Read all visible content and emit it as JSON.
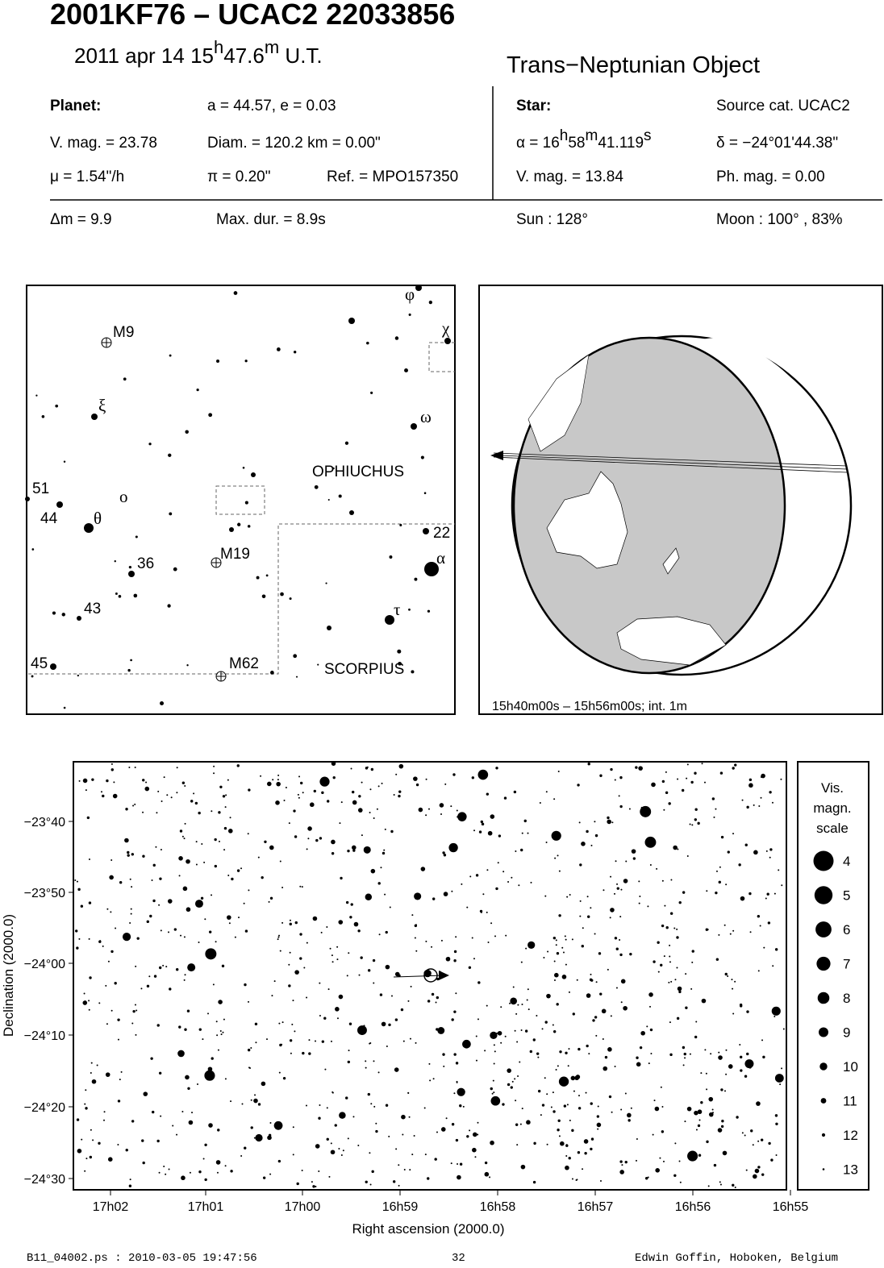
{
  "header": {
    "title": "2001KF76  –  UCAC2 22033856",
    "date_parts": [
      "2011 apr 14  15",
      "h",
      "47.6",
      "m",
      " U.T."
    ],
    "object_type": "Trans−Neptunian Object"
  },
  "planet": {
    "heading": "Planet:",
    "orbit": "a = 44.57, e = 0.03",
    "vmag": "V. mag. = 23.78",
    "diam": "Diam. = 120.2 km = 0.00\"",
    "motion": "μ =  1.54\"/h",
    "parallax": "π =  0.20\"",
    "ref": "Ref. = MPO157350"
  },
  "star": {
    "heading": "Star:",
    "source": "Source cat.  UCAC2",
    "ra_parts": [
      "α = 16",
      "h",
      "58",
      "m",
      "41.119",
      "s"
    ],
    "dec": "δ = −24°01'44.38\"",
    "vmag": "V. mag. = 13.84",
    "phmag": "Ph. mag. =  0.00"
  },
  "event": {
    "dmag": "Δm = 9.9",
    "max_dur": "Max. dur. = 8.9s",
    "sun": "Sun : 128°",
    "moon": "Moon : 100° , 83%"
  },
  "finder_chart": {
    "labels": [
      "M9",
      "ξ",
      "ω",
      "φ",
      "χ",
      "OPHIUCHUS",
      "51",
      "44",
      "θ",
      "ο",
      "22",
      "α",
      "36",
      "M19",
      "43",
      "τ",
      "45",
      "M62",
      "SCORPIUS"
    ]
  },
  "globe": {
    "caption": "15h40m00s – 15h56m00s; int.  1m"
  },
  "star_field": {
    "y_labels": [
      "−23°40",
      "−23°50",
      "−24°00",
      "−24°10",
      "−24°20",
      "−24°30"
    ],
    "x_labels": [
      "17h02",
      "17h01",
      "17h00",
      "16h59",
      "16h58",
      "16h57",
      "16h56",
      "16h55"
    ],
    "x_title": "Right ascension (2000.0)",
    "y_title": "Declination (2000.0)",
    "legend_title": [
      "Vis.",
      "magn.",
      "scale"
    ],
    "legend_mags": [
      "4",
      "5",
      "6",
      "7",
      "8",
      "9",
      "10",
      "11",
      "12",
      "13"
    ]
  },
  "footer": {
    "file": "B11_04002.ps : 2010-03-05 19:47:56",
    "page": "32",
    "author": "Edwin Goffin, Hoboken, Belgium"
  }
}
